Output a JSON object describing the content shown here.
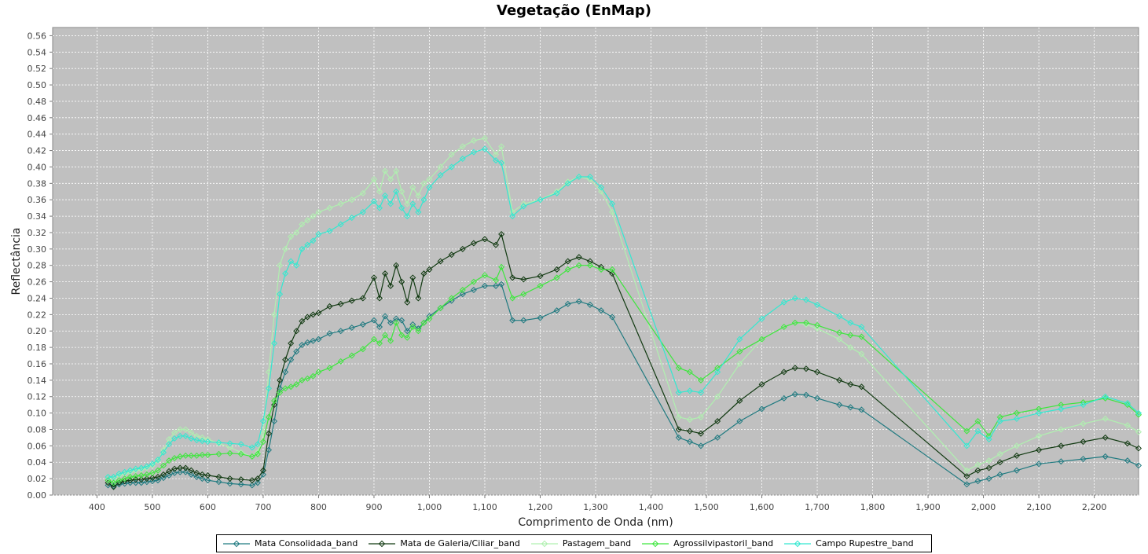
{
  "chart_data": {
    "type": "line",
    "title": "Vegetação (EnMap)",
    "xlabel": "Comprimento de Onda (nm)",
    "ylabel": "Reflectância",
    "xlim": [
      320,
      2280
    ],
    "ylim": [
      0.0,
      0.57
    ],
    "x_ticks": [
      "400",
      "500",
      "600",
      "700",
      "800",
      "900",
      "1,000",
      "1,100",
      "1,200",
      "1,300",
      "1,400",
      "1,500",
      "1,600",
      "1,700",
      "1,800",
      "1,900",
      "2,000",
      "2,100",
      "2,200"
    ],
    "x_tick_values": [
      400,
      500,
      600,
      700,
      800,
      900,
      1000,
      1100,
      1200,
      1300,
      1400,
      1500,
      1600,
      1700,
      1800,
      1900,
      2000,
      2100,
      2200
    ],
    "y_ticks": [
      "0.00",
      "0.02",
      "0.04",
      "0.06",
      "0.08",
      "0.10",
      "0.12",
      "0.14",
      "0.16",
      "0.18",
      "0.20",
      "0.22",
      "0.24",
      "0.26",
      "0.28",
      "0.30",
      "0.32",
      "0.34",
      "0.36",
      "0.38",
      "0.40",
      "0.42",
      "0.44",
      "0.46",
      "0.48",
      "0.50",
      "0.52",
      "0.54",
      "0.56"
    ],
    "y_tick_values": [
      0,
      0.02,
      0.04,
      0.06,
      0.08,
      0.1,
      0.12,
      0.14,
      0.16,
      0.18,
      0.2,
      0.22,
      0.24,
      0.26,
      0.28,
      0.3,
      0.32,
      0.34,
      0.36,
      0.38,
      0.4,
      0.42,
      0.44,
      0.46,
      0.48,
      0.5,
      0.52,
      0.54,
      0.56
    ],
    "grid": true,
    "legend_placement": "bottom",
    "background_color": "#c0c0c0",
    "series": [
      {
        "name": "Mata Consolidada_band",
        "color": "#1f7a80",
        "x": [
          420,
          430,
          440,
          450,
          460,
          470,
          480,
          490,
          500,
          510,
          520,
          530,
          540,
          550,
          560,
          570,
          580,
          590,
          600,
          620,
          640,
          660,
          680,
          690,
          700,
          710,
          720,
          730,
          740,
          750,
          760,
          770,
          780,
          790,
          800,
          820,
          840,
          860,
          880,
          900,
          910,
          920,
          930,
          940,
          950,
          960,
          970,
          980,
          990,
          1000,
          1020,
          1040,
          1060,
          1080,
          1100,
          1120,
          1130,
          1150,
          1170,
          1200,
          1230,
          1250,
          1270,
          1290,
          1310,
          1330,
          1450,
          1470,
          1490,
          1520,
          1560,
          1600,
          1640,
          1660,
          1680,
          1700,
          1740,
          1760,
          1780,
          1970,
          1990,
          2010,
          2030,
          2060,
          2100,
          2140,
          2180,
          2220,
          2260,
          2280
        ],
        "y": [
          0.012,
          0.011,
          0.013,
          0.014,
          0.015,
          0.015,
          0.015,
          0.016,
          0.017,
          0.018,
          0.021,
          0.024,
          0.027,
          0.028,
          0.028,
          0.025,
          0.022,
          0.02,
          0.018,
          0.016,
          0.014,
          0.013,
          0.012,
          0.015,
          0.025,
          0.055,
          0.09,
          0.13,
          0.15,
          0.165,
          0.175,
          0.183,
          0.186,
          0.188,
          0.19,
          0.197,
          0.2,
          0.204,
          0.208,
          0.213,
          0.205,
          0.218,
          0.21,
          0.215,
          0.213,
          0.2,
          0.208,
          0.203,
          0.21,
          0.218,
          0.228,
          0.237,
          0.245,
          0.25,
          0.255,
          0.255,
          0.257,
          0.213,
          0.213,
          0.216,
          0.225,
          0.233,
          0.236,
          0.232,
          0.225,
          0.217,
          0.07,
          0.065,
          0.06,
          0.07,
          0.09,
          0.105,
          0.118,
          0.123,
          0.122,
          0.118,
          0.11,
          0.107,
          0.104,
          0.013,
          0.017,
          0.02,
          0.025,
          0.03,
          0.038,
          0.041,
          0.044,
          0.047,
          0.042,
          0.036
        ]
      },
      {
        "name": "Mata de Galeria/Ciliar_band",
        "color": "#123a12",
        "x": [
          420,
          430,
          440,
          450,
          460,
          470,
          480,
          490,
          500,
          510,
          520,
          530,
          540,
          550,
          560,
          570,
          580,
          590,
          600,
          620,
          640,
          660,
          680,
          690,
          700,
          710,
          720,
          730,
          740,
          750,
          760,
          770,
          780,
          790,
          800,
          820,
          840,
          860,
          880,
          900,
          910,
          920,
          930,
          940,
          950,
          960,
          970,
          980,
          990,
          1000,
          1020,
          1040,
          1060,
          1080,
          1100,
          1120,
          1130,
          1150,
          1170,
          1200,
          1230,
          1250,
          1270,
          1290,
          1310,
          1330,
          1450,
          1470,
          1490,
          1520,
          1560,
          1600,
          1640,
          1660,
          1680,
          1700,
          1740,
          1760,
          1780,
          1970,
          1990,
          2010,
          2030,
          2060,
          2100,
          2140,
          2180,
          2220,
          2260,
          2280
        ],
        "y": [
          0.015,
          0.01,
          0.015,
          0.017,
          0.018,
          0.019,
          0.019,
          0.02,
          0.021,
          0.022,
          0.025,
          0.029,
          0.032,
          0.033,
          0.033,
          0.03,
          0.027,
          0.025,
          0.024,
          0.022,
          0.02,
          0.019,
          0.018,
          0.02,
          0.03,
          0.075,
          0.11,
          0.14,
          0.165,
          0.185,
          0.2,
          0.212,
          0.217,
          0.22,
          0.222,
          0.23,
          0.233,
          0.237,
          0.24,
          0.265,
          0.24,
          0.27,
          0.255,
          0.28,
          0.26,
          0.235,
          0.265,
          0.24,
          0.27,
          0.275,
          0.285,
          0.293,
          0.3,
          0.307,
          0.312,
          0.305,
          0.318,
          0.265,
          0.263,
          0.267,
          0.275,
          0.285,
          0.29,
          0.285,
          0.278,
          0.27,
          0.08,
          0.078,
          0.075,
          0.09,
          0.115,
          0.135,
          0.15,
          0.155,
          0.154,
          0.15,
          0.14,
          0.135,
          0.132,
          0.023,
          0.03,
          0.033,
          0.04,
          0.048,
          0.055,
          0.06,
          0.065,
          0.07,
          0.063,
          0.057
        ]
      },
      {
        "name": "Pastagem_band",
        "color": "#b0f0b0",
        "x": [
          420,
          430,
          440,
          450,
          460,
          470,
          480,
          490,
          500,
          510,
          520,
          530,
          540,
          550,
          560,
          570,
          580,
          590,
          600,
          620,
          640,
          660,
          680,
          690,
          700,
          710,
          720,
          730,
          740,
          750,
          760,
          770,
          780,
          790,
          800,
          820,
          840,
          860,
          880,
          900,
          910,
          920,
          930,
          940,
          950,
          960,
          970,
          980,
          990,
          1000,
          1020,
          1040,
          1060,
          1080,
          1100,
          1120,
          1130,
          1150,
          1170,
          1200,
          1230,
          1250,
          1270,
          1290,
          1310,
          1330,
          1450,
          1470,
          1490,
          1520,
          1560,
          1600,
          1640,
          1660,
          1680,
          1700,
          1740,
          1760,
          1780,
          1970,
          1990,
          2010,
          2030,
          2060,
          2100,
          2140,
          2180,
          2220,
          2260,
          2280
        ],
        "y": [
          0.022,
          0.02,
          0.024,
          0.026,
          0.028,
          0.03,
          0.031,
          0.033,
          0.036,
          0.042,
          0.055,
          0.068,
          0.076,
          0.08,
          0.08,
          0.076,
          0.072,
          0.07,
          0.068,
          0.063,
          0.058,
          0.052,
          0.047,
          0.052,
          0.075,
          0.15,
          0.22,
          0.28,
          0.3,
          0.315,
          0.32,
          0.33,
          0.335,
          0.34,
          0.345,
          0.35,
          0.355,
          0.36,
          0.368,
          0.385,
          0.37,
          0.395,
          0.385,
          0.395,
          0.37,
          0.355,
          0.375,
          0.365,
          0.38,
          0.385,
          0.4,
          0.415,
          0.425,
          0.432,
          0.435,
          0.415,
          0.425,
          0.345,
          0.355,
          0.36,
          0.37,
          0.382,
          0.388,
          0.385,
          0.37,
          0.345,
          0.095,
          0.092,
          0.095,
          0.12,
          0.16,
          0.19,
          0.205,
          0.21,
          0.208,
          0.203,
          0.19,
          0.18,
          0.172,
          0.03,
          0.037,
          0.042,
          0.05,
          0.06,
          0.072,
          0.08,
          0.087,
          0.093,
          0.085,
          0.077
        ]
      },
      {
        "name": "Agrossilvipastoril_band",
        "color": "#3ee63e",
        "x": [
          420,
          430,
          440,
          450,
          460,
          470,
          480,
          490,
          500,
          510,
          520,
          530,
          540,
          550,
          560,
          570,
          580,
          590,
          600,
          620,
          640,
          660,
          680,
          690,
          700,
          710,
          720,
          730,
          740,
          750,
          760,
          770,
          780,
          790,
          800,
          820,
          840,
          860,
          880,
          900,
          910,
          920,
          930,
          940,
          950,
          960,
          970,
          980,
          990,
          1000,
          1020,
          1040,
          1060,
          1080,
          1100,
          1120,
          1130,
          1150,
          1170,
          1200,
          1230,
          1250,
          1270,
          1290,
          1310,
          1330,
          1450,
          1470,
          1490,
          1520,
          1560,
          1600,
          1640,
          1660,
          1680,
          1700,
          1740,
          1760,
          1780,
          1970,
          1990,
          2010,
          2030,
          2060,
          2100,
          2140,
          2180,
          2220,
          2260,
          2280
        ],
        "y": [
          0.018,
          0.015,
          0.018,
          0.02,
          0.022,
          0.023,
          0.024,
          0.025,
          0.027,
          0.03,
          0.036,
          0.042,
          0.045,
          0.047,
          0.048,
          0.048,
          0.048,
          0.049,
          0.049,
          0.05,
          0.051,
          0.05,
          0.047,
          0.05,
          0.065,
          0.095,
          0.115,
          0.125,
          0.13,
          0.132,
          0.135,
          0.14,
          0.142,
          0.145,
          0.15,
          0.155,
          0.163,
          0.17,
          0.178,
          0.19,
          0.185,
          0.195,
          0.188,
          0.21,
          0.195,
          0.192,
          0.205,
          0.2,
          0.21,
          0.215,
          0.228,
          0.24,
          0.25,
          0.26,
          0.268,
          0.262,
          0.278,
          0.24,
          0.245,
          0.255,
          0.265,
          0.275,
          0.28,
          0.28,
          0.275,
          0.275,
          0.155,
          0.15,
          0.14,
          0.155,
          0.175,
          0.19,
          0.205,
          0.21,
          0.21,
          0.207,
          0.198,
          0.195,
          0.193,
          0.078,
          0.09,
          0.072,
          0.095,
          0.1,
          0.105,
          0.11,
          0.113,
          0.118,
          0.11,
          0.098
        ]
      },
      {
        "name": "Campo Rupestre_band",
        "color": "#33e8d0",
        "x": [
          420,
          430,
          440,
          450,
          460,
          470,
          480,
          490,
          500,
          510,
          520,
          530,
          540,
          550,
          560,
          570,
          580,
          590,
          600,
          620,
          640,
          660,
          680,
          690,
          700,
          710,
          720,
          730,
          740,
          750,
          760,
          770,
          780,
          790,
          800,
          820,
          840,
          860,
          880,
          900,
          910,
          920,
          930,
          940,
          950,
          960,
          970,
          980,
          990,
          1000,
          1020,
          1040,
          1060,
          1080,
          1100,
          1120,
          1130,
          1150,
          1170,
          1200,
          1230,
          1250,
          1270,
          1290,
          1310,
          1330,
          1450,
          1470,
          1490,
          1520,
          1560,
          1600,
          1640,
          1660,
          1680,
          1700,
          1740,
          1760,
          1780,
          1970,
          1990,
          2010,
          2030,
          2060,
          2100,
          2140,
          2180,
          2220,
          2260,
          2280
        ],
        "y": [
          0.022,
          0.022,
          0.026,
          0.028,
          0.03,
          0.032,
          0.033,
          0.035,
          0.038,
          0.043,
          0.052,
          0.062,
          0.069,
          0.072,
          0.072,
          0.069,
          0.067,
          0.066,
          0.065,
          0.064,
          0.063,
          0.062,
          0.058,
          0.062,
          0.09,
          0.13,
          0.185,
          0.245,
          0.27,
          0.285,
          0.28,
          0.3,
          0.305,
          0.31,
          0.318,
          0.322,
          0.33,
          0.338,
          0.345,
          0.358,
          0.35,
          0.365,
          0.355,
          0.37,
          0.35,
          0.34,
          0.355,
          0.345,
          0.36,
          0.375,
          0.39,
          0.4,
          0.41,
          0.418,
          0.422,
          0.408,
          0.405,
          0.34,
          0.352,
          0.36,
          0.368,
          0.38,
          0.388,
          0.388,
          0.375,
          0.355,
          0.125,
          0.127,
          0.125,
          0.15,
          0.19,
          0.215,
          0.235,
          0.24,
          0.238,
          0.232,
          0.218,
          0.21,
          0.205,
          0.06,
          0.078,
          0.068,
          0.09,
          0.093,
          0.1,
          0.105,
          0.11,
          0.12,
          0.112,
          0.1
        ]
      }
    ]
  }
}
